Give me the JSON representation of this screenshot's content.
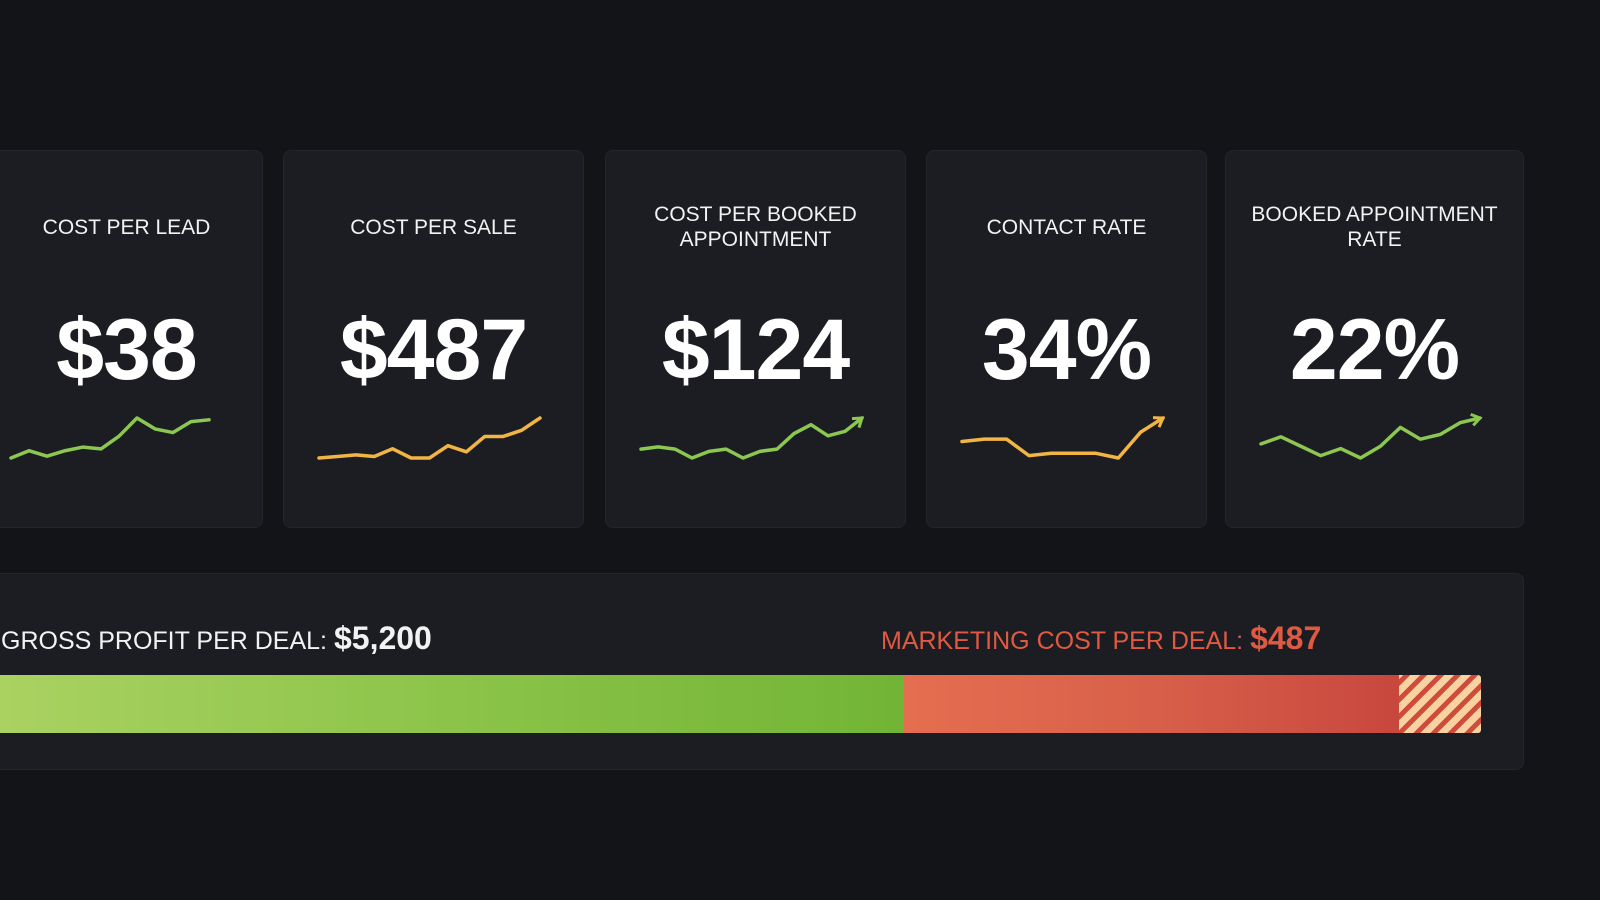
{
  "kpis": [
    {
      "title": "COST PER LEAD",
      "value": "$38",
      "trend_color": "#8cc751",
      "trend": [
        2,
        4,
        2.5,
        4,
        5,
        4.5,
        8,
        13,
        10,
        9,
        12,
        12.5
      ]
    },
    {
      "title": "COST PER SALE",
      "value": "$487",
      "trend_color": "#f2b544",
      "trend": [
        2,
        2.5,
        3,
        2.5,
        5,
        2,
        2,
        6,
        4,
        9,
        9,
        11,
        15
      ]
    },
    {
      "title": "COST PER BOOKED APPOINTMENT",
      "value": "$124",
      "trend_color": "#8cc751",
      "trend": [
        4,
        5,
        4,
        0,
        3,
        4,
        0,
        3,
        4,
        11,
        15,
        10,
        12,
        18
      ]
    },
    {
      "title": "CONTACT RATE",
      "value": "34%",
      "trend_color": "#f2b544",
      "trend": [
        8,
        8.5,
        8.5,
        5,
        5.5,
        5.5,
        5.5,
        4.5,
        10,
        13
      ]
    },
    {
      "title": "BOOKED APPOINTMENT RATE",
      "value": "22%",
      "trend_color": "#8cc751",
      "trend": [
        6,
        9,
        5,
        1,
        4,
        0,
        5,
        13,
        8,
        10,
        15,
        17
      ]
    }
  ],
  "deal": {
    "gross_label": "GROSS PROFIT PER DEAL:",
    "gross_value": "$5,200",
    "marketing_label": "MARKETING COST PER DEAL:",
    "marketing_value": "$487",
    "marketing_color": "#e05a43",
    "bar_segments": [
      {
        "name": "gross-profit",
        "share": 0.613,
        "color": "#8cc44a"
      },
      {
        "name": "marketing-cost",
        "share": 0.332,
        "color": "#d8604a"
      },
      {
        "name": "overflow-hatched",
        "share": 0.055,
        "color": "#f9d2a2"
      }
    ]
  }
}
